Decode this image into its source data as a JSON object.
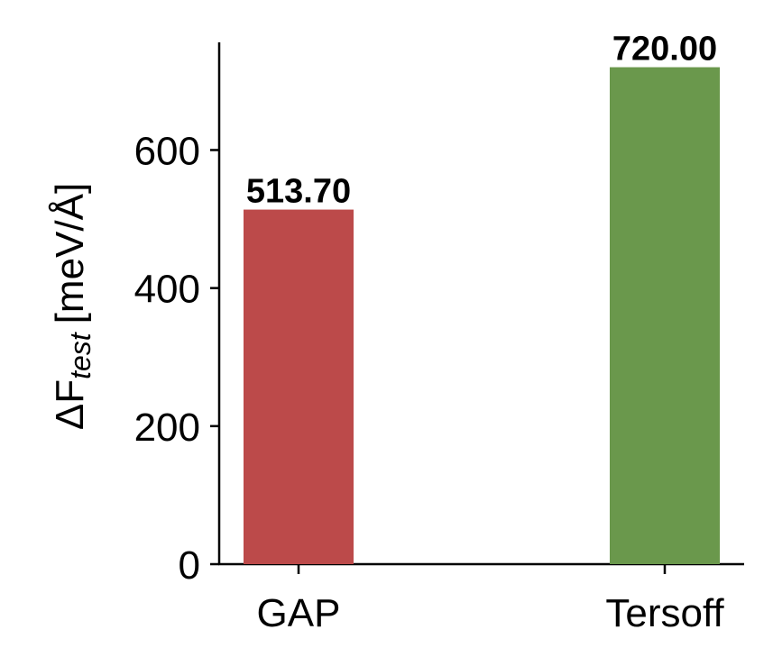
{
  "chart_data": {
    "type": "bar",
    "ylabel": "ΔF",
    "ylabel_sub": "test",
    "ylabel_unit": "[meV/Å]",
    "categories": [
      "GAP",
      "Tersoff"
    ],
    "values": [
      513.7,
      720.0
    ],
    "value_labels": [
      "513.70",
      "720.00"
    ],
    "colors": [
      "#bc4a4a",
      "#6a984c"
    ],
    "ylim": [
      0,
      756
    ],
    "yticks": [
      0,
      200,
      400,
      600
    ]
  }
}
